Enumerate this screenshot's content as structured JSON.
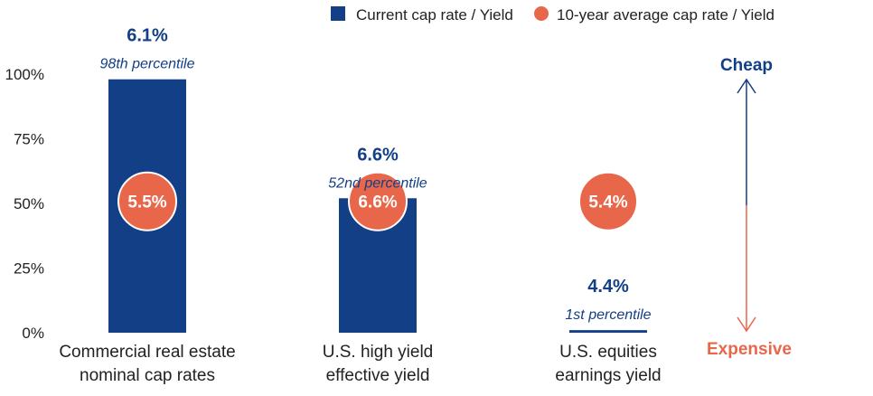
{
  "chart_data": {
    "type": "bar",
    "categories": [
      [
        "Commercial real estate",
        "nominal cap rates"
      ],
      [
        "U.S. high yield",
        "effective yield"
      ],
      [
        "U.S. equities",
        "earnings yield"
      ]
    ],
    "y_tick_labels": [
      "0%",
      "25%",
      "50%",
      "75%",
      "100%"
    ],
    "ylim": [
      0,
      100
    ],
    "series": [
      {
        "name": "Current cap rate / Yield",
        "percentile_values": [
          98,
          52,
          1
        ],
        "value_labels": [
          "6.1%",
          "6.6%",
          "4.4%"
        ],
        "percentile_labels": [
          "98th percentile",
          "52nd percentile",
          "1st percentile"
        ]
      },
      {
        "name": "10-year average cap rate / Yield",
        "percentile_values": [
          48,
          48,
          48
        ],
        "value_labels": [
          "5.5%",
          "6.6%",
          "5.4%"
        ]
      }
    ],
    "scale": {
      "top_label": "Cheap",
      "bottom_label": "Expensive"
    },
    "legend_position": "top-right",
    "grid": false
  },
  "colors": {
    "bar": "#123f86",
    "dot": "#e8674a",
    "value_text": "#123f86",
    "cheap": "#123f86",
    "expensive": "#e8674a"
  }
}
